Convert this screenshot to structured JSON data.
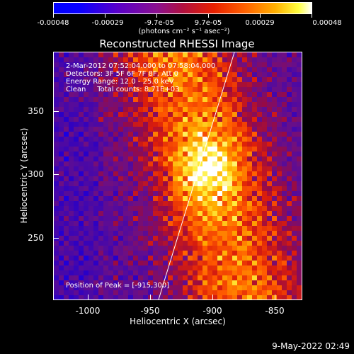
{
  "colorbar": {
    "ticks": [
      "-0.00048",
      "-0.00029",
      "-9.7e-05",
      "9.7e-05",
      "0.00029",
      "0.00048"
    ],
    "units": "(photons cm⁻² s⁻¹ asec⁻²)"
  },
  "title": "Reconstructed RHESSI Image",
  "info": {
    "time": "2-Mar-2012 07:52:04.000 to 07:58:04.000",
    "detectors": "Detectors: 3F 5F 6F 7F 8F, Att 0",
    "energy": "Energy Range: 12.0 - 25.0 keV",
    "clean": "Clean     Total counts: 8.71E+03",
    "peak": "Position of Peak = [-915,300]"
  },
  "axes": {
    "xlabel": "Heliocentric X (arcsec)",
    "ylabel": "Heliocentric Y (arcsec)",
    "xticks": [
      "-1000",
      "-950",
      "-900",
      "-850"
    ],
    "yticks": [
      "350",
      "300",
      "250"
    ]
  },
  "footer": "9-May-2022 02:49",
  "colors": {
    "background": "#000000",
    "limb_line": "#ffffff"
  }
}
